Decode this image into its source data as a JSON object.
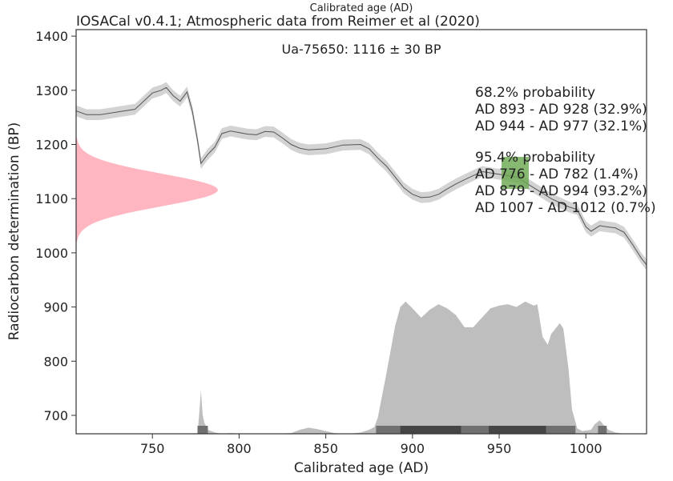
{
  "chart_data": {
    "type": "area",
    "title": "IOSACal v0.4.1; Atmospheric data from Reimer et al (2020)",
    "top_axis_label": "Calibrated age (AD)",
    "xlabel": "Calibrated age (AD)",
    "ylabel": "Radiocarbon determination (BP)",
    "sample_label": "Ua-75650: 1116 ± 30 BP",
    "xlim": [
      706,
      1035
    ],
    "ylim": [
      666,
      1412
    ],
    "x_ticks": [
      750,
      800,
      850,
      900,
      950,
      1000
    ],
    "y_ticks": [
      700,
      800,
      900,
      1000,
      1100,
      1200,
      1300,
      1400
    ],
    "radiocarbon_determination": {
      "mean": 1116,
      "sd": 30
    },
    "calibration_curve": {
      "x": [
        706,
        712,
        720,
        730,
        740,
        745,
        750,
        755,
        758,
        762,
        766,
        770,
        773,
        776,
        778,
        782,
        786,
        790,
        795,
        800,
        805,
        810,
        815,
        820,
        825,
        830,
        835,
        840,
        850,
        860,
        870,
        875,
        880,
        885,
        890,
        895,
        900,
        905,
        910,
        915,
        920,
        925,
        930,
        940,
        950,
        960,
        970,
        980,
        990,
        995,
        1000,
        1003,
        1008,
        1012,
        1017,
        1022,
        1027,
        1032,
        1035
      ],
      "y": [
        1262,
        1255,
        1255,
        1260,
        1265,
        1280,
        1295,
        1300,
        1305,
        1290,
        1280,
        1297,
        1262,
        1208,
        1165,
        1182,
        1195,
        1220,
        1225,
        1222,
        1219,
        1218,
        1224,
        1223,
        1212,
        1200,
        1193,
        1190,
        1192,
        1199,
        1200,
        1192,
        1175,
        1160,
        1140,
        1120,
        1108,
        1102,
        1103,
        1108,
        1118,
        1127,
        1135,
        1150,
        1145,
        1140,
        1120,
        1100,
        1085,
        1080,
        1048,
        1040,
        1050,
        1048,
        1046,
        1038,
        1015,
        990,
        978
      ],
      "band": 10
    },
    "calibrated_distribution": {
      "x": [
        776,
        777,
        778,
        779,
        780,
        782,
        786,
        790,
        795,
        800,
        810,
        820,
        830,
        835,
        840,
        845,
        850,
        855,
        860,
        865,
        870,
        875,
        878,
        880,
        885,
        890,
        893,
        896,
        900,
        905,
        910,
        915,
        920,
        925,
        930,
        935,
        940,
        945,
        950,
        955,
        960,
        965,
        970,
        972,
        975,
        978,
        980,
        985,
        987,
        990,
        992,
        995,
        998,
        1003,
        1005,
        1008,
        1010,
        1013,
        1017,
        1022
      ],
      "density": [
        0.0,
        0.15,
        0.32,
        0.14,
        0.08,
        0.03,
        0.01,
        0.0,
        0.005,
        0.002,
        0.0,
        0.0,
        0.005,
        0.03,
        0.045,
        0.035,
        0.02,
        0.005,
        0.0,
        0.002,
        0.01,
        0.03,
        0.05,
        0.12,
        0.45,
        0.8,
        0.94,
        0.98,
        0.93,
        0.86,
        0.92,
        0.96,
        0.93,
        0.88,
        0.79,
        0.79,
        0.86,
        0.93,
        0.95,
        0.96,
        0.94,
        0.98,
        0.95,
        0.96,
        0.72,
        0.66,
        0.74,
        0.82,
        0.78,
        0.48,
        0.18,
        0.04,
        0.02,
        0.03,
        0.07,
        0.1,
        0.07,
        0.03,
        0.01,
        0.0
      ],
      "peak_y": 915,
      "base_y": 666
    },
    "probability_bands": [
      {
        "x0": 776,
        "x1": 782,
        "level": "95.4"
      },
      {
        "x0": 879,
        "x1": 994,
        "level": "95.4"
      },
      {
        "x0": 1007,
        "x1": 1012,
        "level": "95.4"
      },
      {
        "x0": 893,
        "x1": 928,
        "level": "68.2"
      },
      {
        "x0": 944,
        "x1": 977,
        "level": "68.2"
      }
    ],
    "summary": {
      "p68_title": "68.2% probability",
      "p68_lines": [
        "AD 893 - AD 928 (32.9%)",
        "AD 944 - AD 977 (32.1%)"
      ],
      "p95_title": "95.4% probability",
      "p95_lines": [
        "AD 776 - AD 782 (1.4%)",
        "AD 879 - AD 994 (93.2%)",
        "AD 1007 - AD 1012 (0.7%)"
      ]
    },
    "colors": {
      "curve_line": "#555555",
      "curve_band": "#d3d3d3",
      "calibrated_fill": "#bebebe",
      "bp_fill": "#ffb6c1",
      "band_95": "#707070",
      "band_68": "#454545",
      "highlight": "#6aa84f"
    }
  }
}
